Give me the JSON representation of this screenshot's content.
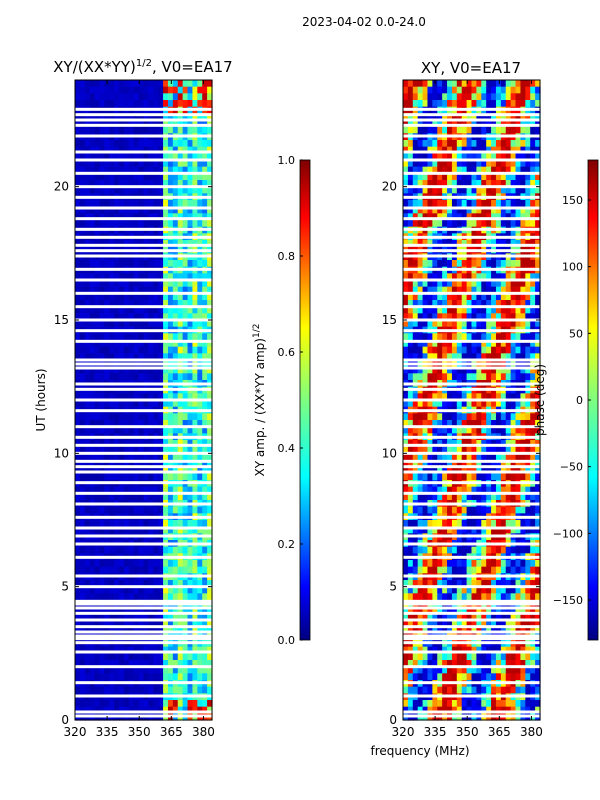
{
  "suptitle": "2023-04-02 0.0-24.0",
  "chart_data": [
    {
      "type": "heatmap",
      "title_main": "XY/(XX*YY)",
      "title_exp": "1/2",
      "title_tail": ", V0=EA17",
      "ylabel": "UT (hours)",
      "xlim": [
        320,
        384
      ],
      "ylim": [
        0,
        24
      ],
      "xticks": [
        "320",
        "335",
        "350",
        "365",
        "380"
      ],
      "xtick_values": [
        320,
        335,
        350,
        365,
        380
      ],
      "yticks": [
        "0",
        "5",
        "10",
        "15",
        "20"
      ],
      "ytick_values": [
        0,
        5,
        10,
        15,
        20
      ],
      "colorbar": {
        "label_main": "XY amp. / (XX*YY amp)",
        "label_exp": "1/2",
        "range": [
          0,
          1
        ],
        "ticks": [
          "0.0",
          "0.2",
          "0.4",
          "0.6",
          "0.8",
          "1.0"
        ],
        "tick_values": [
          0,
          0.2,
          0.4,
          0.6,
          0.8,
          1.0
        ]
      },
      "bright_band_mhz": [
        362,
        383
      ],
      "colors": [
        "#00007f",
        "#0000ff",
        "#007fff",
        "#00ffff",
        "#7fff7f",
        "#ffff00",
        "#ff7f00",
        "#ff0000",
        "#7f0000"
      ]
    },
    {
      "type": "heatmap",
      "title": "XY, V0=EA17",
      "xlabel": "frequency (MHz)",
      "xlim": [
        320,
        384
      ],
      "ylim": [
        0,
        24
      ],
      "xticks": [
        "320",
        "335",
        "350",
        "365",
        "380"
      ],
      "xtick_values": [
        320,
        335,
        350,
        365,
        380
      ],
      "yticks": [
        "0",
        "5",
        "10",
        "15",
        "20"
      ],
      "ytick_values": [
        0,
        5,
        10,
        15,
        20
      ],
      "colorbar": {
        "label": "phase (deg)",
        "range": [
          -180,
          180
        ],
        "ticks": [
          "150",
          "100",
          "50",
          "0",
          "−50",
          "−100",
          "−150"
        ],
        "tick_values": [
          150,
          100,
          50,
          0,
          -50,
          -100,
          -150
        ]
      }
    }
  ],
  "flagged_ut_hours": [
    0.15,
    0.3,
    0.9,
    1.4,
    2.0,
    2.55,
    2.9,
    3.05,
    3.15,
    3.3,
    3.5,
    3.75,
    4.0,
    4.2,
    4.35,
    4.45,
    5.0,
    5.4,
    6.1,
    6.6,
    6.9,
    7.2,
    7.6,
    8.1,
    8.5,
    8.9,
    9.3,
    9.5,
    9.7,
    10.0,
    10.3,
    10.6,
    11.0,
    11.6,
    12.0,
    12.4,
    12.6,
    13.2,
    13.35,
    13.5,
    14.2,
    14.6,
    15.0,
    15.5,
    16.0,
    16.5,
    16.9,
    17.4,
    17.6,
    17.8,
    18.1,
    18.4,
    18.8,
    19.2,
    19.6,
    20.0,
    20.5,
    21.0,
    21.3,
    21.9,
    22.3,
    22.5,
    22.7,
    22.9
  ]
}
